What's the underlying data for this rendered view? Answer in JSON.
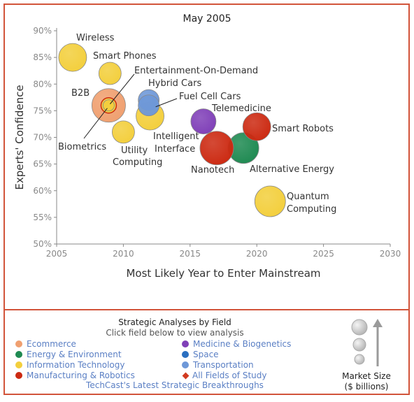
{
  "chart_data": {
    "type": "bubble",
    "title": "May 2005",
    "xlabel": "Most Likely Year to Enter Mainstream",
    "ylabel": "Experts' Confidence",
    "xlim": [
      2005,
      2030
    ],
    "ylim": [
      50,
      90
    ],
    "x_ticks": [
      "2005",
      "2010",
      "2015",
      "2020",
      "2025",
      "2030"
    ],
    "y_ticks": [
      "50%",
      "55%",
      "60%",
      "65%",
      "70%",
      "75%",
      "80%",
      "85%",
      "90%"
    ],
    "grid": false,
    "points": [
      {
        "label": "Wireless",
        "x": 2006.2,
        "y": 85,
        "size": 1.0,
        "field": "Information Technology"
      },
      {
        "label": "Smart Phones",
        "x": 2009,
        "y": 82,
        "size": 0.8,
        "field": "Information Technology"
      },
      {
        "label": "B2B",
        "x": 2008.9,
        "y": 76,
        "size": 1.2,
        "field": "Ecommerce"
      },
      {
        "label": "Biometrics",
        "x": 2008.9,
        "y": 76,
        "size": 0.55,
        "field": "Information Technology"
      },
      {
        "label": "Entertainment-On-Demand",
        "x": 2008.9,
        "y": 76,
        "size": 0.4,
        "field": "Information Technology"
      },
      {
        "label": "Hybrid Cars",
        "x": 2011.9,
        "y": 77,
        "size": 0.75,
        "field": "Transportation"
      },
      {
        "label": "Fuel Cell Cars",
        "x": 2011.9,
        "y": 76,
        "size": 0.75,
        "field": "Transportation"
      },
      {
        "label": "Intelligent Interface",
        "x": 2012,
        "y": 74,
        "size": 1.0,
        "field": "Information Technology"
      },
      {
        "label": "Utility Computing",
        "x": 2010,
        "y": 71,
        "size": 0.8,
        "field": "Information Technology"
      },
      {
        "label": "Telemedicine",
        "x": 2016,
        "y": 73,
        "size": 0.9,
        "field": "Medicine & Biogenetics"
      },
      {
        "label": "Smart Robots",
        "x": 2020,
        "y": 72,
        "size": 1.0,
        "field": "Manufacturing & Robotics"
      },
      {
        "label": "Alternative Energy",
        "x": 2019,
        "y": 68,
        "size": 1.1,
        "field": "Energy & Environment"
      },
      {
        "label": "Nanotech",
        "x": 2017,
        "y": 68,
        "size": 1.2,
        "field": "Manufacturing & Robotics"
      },
      {
        "label": "Quantum Computing",
        "x": 2021,
        "y": 58,
        "size": 1.1,
        "field": "Information Technology"
      }
    ]
  },
  "labels": [
    {
      "text": "Wireless",
      "ref": 0
    },
    {
      "text": "Smart Phones",
      "ref": 1
    },
    {
      "text": "Entertainment-On-Demand",
      "ref": 4
    },
    {
      "text": "B2B",
      "ref": 2
    },
    {
      "text": "Hybrid Cars",
      "ref": 5
    },
    {
      "text": "Fuel Cell Cars",
      "ref": 6
    },
    {
      "text": "Telemedicine",
      "ref": 9
    },
    {
      "text": "Smart Robots",
      "ref": 10
    },
    {
      "text": "Intelligent",
      "ref": 7
    },
    {
      "text": "Interface",
      "ref": 7
    },
    {
      "text": "Biometrics",
      "ref": 3
    },
    {
      "text": "Utility",
      "ref": 8
    },
    {
      "text": "Computing",
      "ref": 8
    },
    {
      "text": "Nanotech",
      "ref": 12
    },
    {
      "text": "Alternative Energy",
      "ref": 11
    },
    {
      "text": "Quantum",
      "ref": 13
    },
    {
      "text": "Computing",
      "ref": 13
    }
  ],
  "colors": {
    "frame": "#d2543a",
    "Ecommerce": "#f0a070",
    "Energy & Environment": "#1f8a52",
    "Information Technology": "#f3cf3d",
    "Manufacturing & Robotics": "#cc2a12",
    "Medicine & Biogenetics": "#8040b8",
    "Space": "#2a6fc0",
    "Transportation": "#6e98d8",
    "All Fields of Study": "#d23a20",
    "link": "#5a7fc4"
  },
  "legend": {
    "title": "Strategic Analyses by Field",
    "subtitle": "Click field below to view analysis",
    "items_left": [
      "Ecommerce",
      "Energy & Environment",
      "Information Technology",
      "Manufacturing & Robotics"
    ],
    "items_right": [
      "Medicine & Biogenetics",
      "Space",
      "Transportation",
      "All Fields of Study"
    ],
    "footer": "TechCast's Latest Strategic Breakthroughs",
    "size_key": {
      "line1": "Market Size",
      "line2": "($ billions)"
    }
  }
}
